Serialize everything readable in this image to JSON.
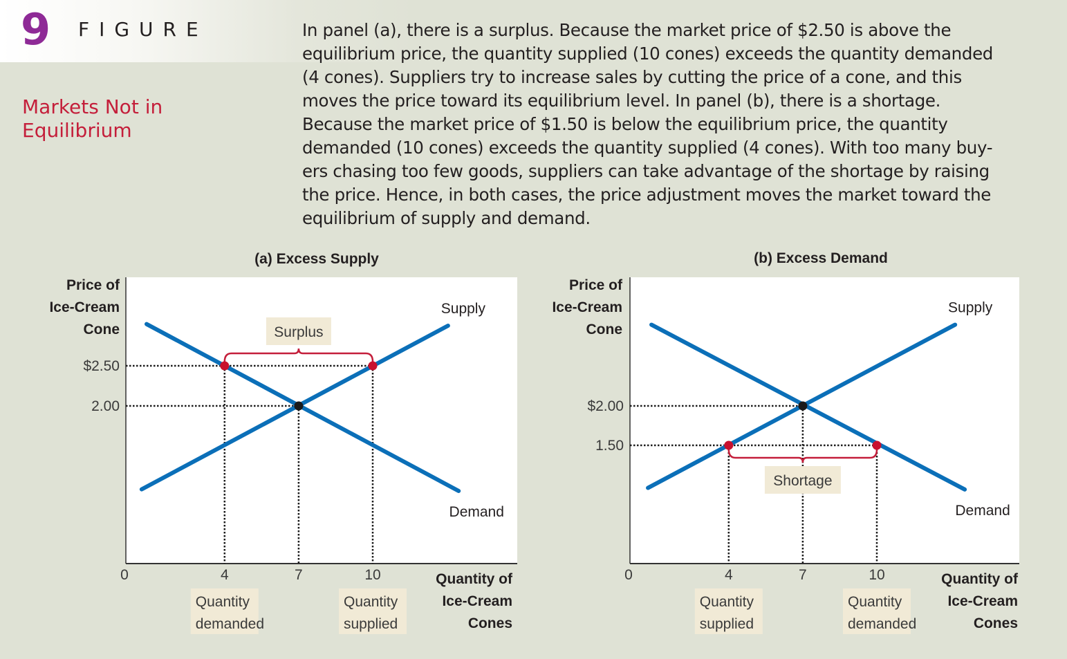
{
  "figure": {
    "number": "9",
    "word": "FIGURE",
    "title_lines": [
      "Markets Not in",
      "Equilibrium"
    ],
    "caption_lines": [
      "In panel (a), there is a surplus. Because the market price of $2.50 is above the",
      "equilibrium price, the quantity supplied (10 cones) exceeds the quantity demanded",
      "(4 cones). Suppliers try to increase sales by cutting the price of a cone, and this",
      "moves the price toward its equilibrium level. In panel (b), there is a shortage.",
      "Because the market price of $1.50 is below the equilibrium price, the quantity",
      "demanded (10 cones) exceeds the quantity supplied (4 cones). With too many buy-",
      "ers chasing too few goods, suppliers can take advantage of the shortage by raising",
      "the price. Hence, in both cases, the price adjustment moves the market toward the",
      "equilibrium of supply and demand."
    ]
  },
  "colors": {
    "background": "#dfe2d5",
    "plot_bg": "#ffffff",
    "curve": "#0b6fb8",
    "market_point": "#c8102e",
    "equilibrium_point": "#1a1a1a",
    "brace": "#c41e3a",
    "label_box": "#f1ead6",
    "title_red": "#c41e3a",
    "figure_number": "#8e2a96"
  },
  "chart_data": [
    {
      "type": "line",
      "title": "(a) Excess Supply",
      "ylabel_lines": [
        "Price of",
        "Ice-Cream",
        "Cone"
      ],
      "xlabel_lines": [
        "Quantity of",
        "Ice-Cream",
        "Cones"
      ],
      "x_ticks": [
        {
          "value": 0,
          "label": "0"
        },
        {
          "value": 4,
          "label": "4"
        },
        {
          "value": 7,
          "label": "7"
        },
        {
          "value": 10,
          "label": "10"
        }
      ],
      "y_ticks": [
        {
          "value": 2.5,
          "label": "$2.50"
        },
        {
          "value": 2.0,
          "label": "2.00"
        }
      ],
      "xlim": [
        0,
        15.8
      ],
      "ylim": [
        0,
        3.6
      ],
      "series": [
        {
          "name": "Supply",
          "label": "Supply",
          "points": [
            [
              0.64,
              0.96
            ],
            [
              13.05,
              3.0
            ]
          ]
        },
        {
          "name": "Demand",
          "label": "Demand",
          "points": [
            [
              0.84,
              3.02
            ],
            [
              13.48,
              0.94
            ]
          ]
        }
      ],
      "market_price": 2.5,
      "equilibrium": {
        "q": 7,
        "p": 2.0
      },
      "market_points": [
        {
          "q": 4,
          "p": 2.5
        },
        {
          "q": 10,
          "p": 2.5
        }
      ],
      "gap_label": "Surplus",
      "bottom_labels": [
        {
          "q": 4,
          "lines": [
            "Quantity",
            "demanded"
          ]
        },
        {
          "q": 10,
          "lines": [
            "Quantity",
            "supplied"
          ]
        }
      ]
    },
    {
      "type": "line",
      "title": "(b) Excess Demand",
      "ylabel_lines": [
        "Price of",
        "Ice-Cream",
        "Cone"
      ],
      "xlabel_lines": [
        "Quantity of",
        "Ice-Cream",
        "Cones"
      ],
      "x_ticks": [
        {
          "value": 0,
          "label": "0"
        },
        {
          "value": 4,
          "label": "4"
        },
        {
          "value": 7,
          "label": "7"
        },
        {
          "value": 10,
          "label": "10"
        }
      ],
      "y_ticks": [
        {
          "value": 2.0,
          "label": "$2.00"
        },
        {
          "value": 1.5,
          "label": "1.50"
        }
      ],
      "xlim": [
        0,
        15.8
      ],
      "ylim": [
        0,
        3.6
      ],
      "series": [
        {
          "name": "Supply",
          "label": "Supply",
          "points": [
            [
              0.73,
              0.96
            ],
            [
              13.17,
              3.03
            ]
          ]
        },
        {
          "name": "Demand",
          "label": "Demand",
          "points": [
            [
              0.87,
              3.03
            ],
            [
              13.56,
              0.94
            ]
          ]
        }
      ],
      "market_price": 1.5,
      "equilibrium": {
        "q": 7,
        "p": 2.0
      },
      "market_points": [
        {
          "q": 4,
          "p": 1.5
        },
        {
          "q": 10,
          "p": 1.5
        }
      ],
      "gap_label": "Shortage",
      "bottom_labels": [
        {
          "q": 4,
          "lines": [
            "Quantity",
            "supplied"
          ]
        },
        {
          "q": 10,
          "lines": [
            "Quantity",
            "demanded"
          ]
        }
      ]
    }
  ]
}
